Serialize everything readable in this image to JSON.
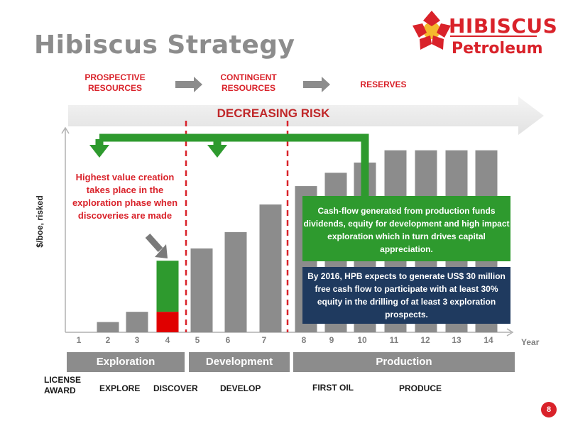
{
  "header": {
    "title": "Hibiscus Strategy",
    "logo_word1": "HIBISCUS",
    "logo_word2": "Petroleum",
    "brand_red": "#d9222a",
    "brand_yellow": "#f5b82e"
  },
  "stages": [
    {
      "label": "PROSPECTIVE RESOURCES"
    },
    {
      "label": "CONTINGENT RESOURCES"
    },
    {
      "label": "RESERVES"
    }
  ],
  "risk_banner": "DECREASING RISK",
  "notes": {
    "value_creation": "Highest value creation takes place in the exploration phase when discoveries are made",
    "cash_flow": "Cash-flow generated from production funds dividends, equity for development and high impact exploration which in turn drives capital appreciation.",
    "target_2016": "By 2016, HPB expects to generate US$ 30 million free cash flow to participate with at least 30% equity in the drilling of at least 3 exploration prospects."
  },
  "phases": [
    {
      "label": "Exploration"
    },
    {
      "label": "Development"
    },
    {
      "label": "Production"
    }
  ],
  "milestones": [
    {
      "label": "LICENSE AWARD"
    },
    {
      "label": "EXPLORE"
    },
    {
      "label": "DISCOVER"
    },
    {
      "label": "DEVELOP"
    },
    {
      "label": "FIRST OIL"
    },
    {
      "label": "PRODUCE"
    }
  ],
  "page_number": "8",
  "chart_data": {
    "type": "bar",
    "xlabel": "Year",
    "ylabel": "$/boe, risked",
    "categories": [
      "1",
      "2",
      "3",
      "4",
      "5",
      "6",
      "7",
      "8",
      "9",
      "10",
      "11",
      "12",
      "13",
      "14"
    ],
    "values": [
      0,
      1,
      2,
      7,
      8.2,
      9.8,
      12.5,
      14.3,
      15.6,
      16.6,
      17.8,
      17.8,
      17.8,
      17.8
    ],
    "highlight": {
      "category": "4",
      "lower_value": 2,
      "lower_color": "#e00000",
      "upper_color": "#2e9a2e"
    },
    "bar_color": "#8c8c8c",
    "grid": false,
    "phase_dividers_after": [
      "4",
      "7"
    ],
    "ylim": [
      0,
      20
    ]
  }
}
